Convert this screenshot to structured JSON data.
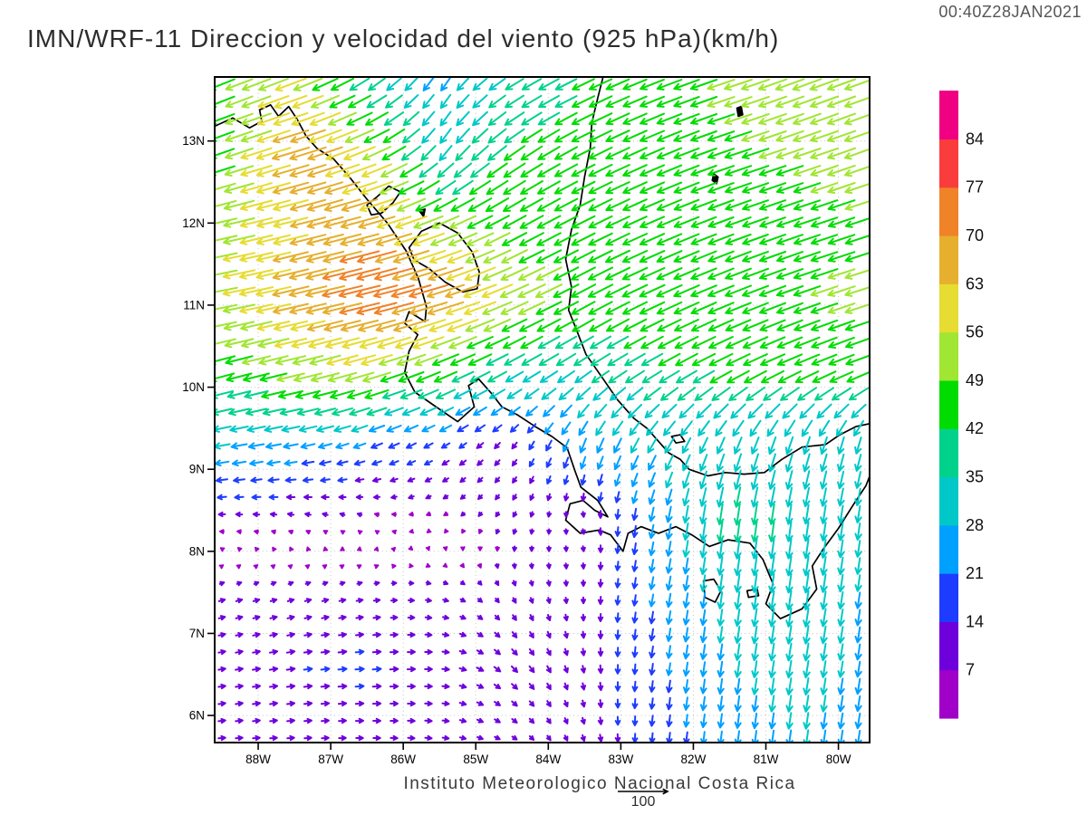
{
  "header": {
    "title": "IMN/WRF-11 Direccion y velocidad del viento (925 hPa)(km/h)",
    "timestamp": "00:40Z28JAN2021"
  },
  "footer": {
    "credit": "Instituto Meteorologico Nacional Costa Rica",
    "reference_value": "100"
  },
  "chart_data": {
    "type": "vector-field-map",
    "title": "IMN/WRF-11 Direccion y velocidad del viento (925 hPa)(km/h)",
    "valid_time": "00:40Z28JAN2021",
    "units": "km/h",
    "pressure_level": "925 hPa",
    "reference_vector_kmh": 100,
    "lon_range": [
      -88.6,
      -79.57
    ],
    "lat_range": [
      5.67,
      13.78
    ],
    "x_tick_labels": [
      "88W",
      "87W",
      "86W",
      "85W",
      "84W",
      "83W",
      "82W",
      "81W",
      "80W"
    ],
    "x_tick_lons": [
      -88,
      -87,
      -86,
      -85,
      -84,
      -83,
      -82,
      -81,
      -80
    ],
    "y_tick_labels": [
      "13N",
      "12N",
      "11N",
      "10N",
      "9N",
      "8N",
      "7N",
      "6N"
    ],
    "y_tick_lats": [
      13,
      12,
      11,
      10,
      9,
      8,
      7,
      6
    ],
    "speed_levels_kmh": [
      7,
      14,
      21,
      28,
      35,
      42,
      49,
      56,
      63,
      70,
      77,
      84
    ],
    "level_colors": [
      "#a000c8",
      "#6e00dc",
      "#1e3cff",
      "#00a0ff",
      "#00c8c8",
      "#00d28c",
      "#00dc00",
      "#a0e632",
      "#e6dc32",
      "#e6af2d",
      "#f08228",
      "#fa3c3c",
      "#f00082"
    ],
    "grid_color": "#c4c4c4",
    "coast_color": "#000000",
    "wind_grid": {
      "lons": [
        -88.5,
        -87.5,
        -86.5,
        -85.5,
        -84.5,
        -83.5,
        -82.5,
        -81.5,
        -80.5,
        -79.5
      ],
      "lats": [
        13.8,
        12.9,
        12.0,
        11.1,
        10.2,
        9.3,
        8.4,
        7.5,
        6.6,
        5.7
      ],
      "u_kmh": [
        [
          -45,
          -52,
          -28,
          -14,
          -30,
          -38,
          -42,
          -48,
          -50,
          -48
        ],
        [
          -42,
          -66,
          -52,
          -18,
          -35,
          -40,
          -42,
          -46,
          -47,
          -50
        ],
        [
          -52,
          -60,
          -66,
          -48,
          -40,
          -40,
          -42,
          -44,
          -45,
          -46
        ],
        [
          -54,
          -64,
          -74,
          -68,
          -50,
          -42,
          -44,
          -45,
          -46,
          -48
        ],
        [
          -44,
          -50,
          -52,
          -42,
          -32,
          -30,
          -35,
          -40,
          -42,
          -44
        ],
        [
          -28,
          -25,
          -20,
          -14,
          -8,
          -10,
          -15,
          -12,
          -10,
          -8
        ],
        [
          -10,
          -9,
          -6,
          -5,
          -4,
          2,
          -5,
          -5,
          -5,
          -4
        ],
        [
          10,
          10,
          10,
          9,
          4,
          0,
          -4,
          -4,
          -5,
          -4
        ],
        [
          12,
          14,
          15,
          12,
          10,
          2,
          -3,
          -4,
          -5,
          -4
        ],
        [
          12,
          12,
          12,
          11,
          8,
          3,
          -2,
          -3,
          -4,
          -4
        ]
      ],
      "v_kmh": [
        [
          -18,
          -20,
          -20,
          -22,
          -18,
          -18,
          -16,
          -16,
          -19,
          -17
        ],
        [
          -15,
          -20,
          -22,
          -26,
          -25,
          -20,
          -18,
          -15,
          -16,
          -18
        ],
        [
          -12,
          -15,
          -18,
          -20,
          -22,
          -20,
          -18,
          -16,
          -15,
          -15
        ],
        [
          -10,
          -15,
          -18,
          -20,
          -22,
          -22,
          -20,
          -18,
          -16,
          -15
        ],
        [
          -12,
          -12,
          -15,
          -18,
          -18,
          -20,
          -20,
          -20,
          -18,
          -16
        ],
        [
          -5,
          -5,
          -8,
          -8,
          -10,
          -25,
          -25,
          -28,
          -30,
          -28
        ],
        [
          0,
          2,
          3,
          -3,
          -8,
          -8,
          -25,
          -38,
          -34,
          -28
        ],
        [
          3,
          3,
          2,
          -2,
          -8,
          -10,
          -22,
          -30,
          -34,
          -26
        ],
        [
          2,
          2,
          1,
          0,
          -10,
          -12,
          -20,
          -28,
          -30,
          -26
        ],
        [
          1,
          1,
          0,
          -1,
          -5,
          -10,
          -18,
          -24,
          -28,
          -25
        ]
      ]
    },
    "coastlines": [
      {
        "name": "pacific-coast",
        "closed": false,
        "fill": false,
        "points": [
          [
            -88.6,
            13.18
          ],
          [
            -88.35,
            13.28
          ],
          [
            -88.12,
            13.16
          ],
          [
            -87.95,
            13.24
          ],
          [
            -87.98,
            13.38
          ],
          [
            -87.83,
            13.44
          ],
          [
            -87.72,
            13.3
          ],
          [
            -87.58,
            13.42
          ],
          [
            -87.46,
            13.26
          ],
          [
            -87.34,
            13.06
          ],
          [
            -87.19,
            12.91
          ],
          [
            -86.96,
            12.78
          ],
          [
            -86.74,
            12.56
          ],
          [
            -86.5,
            12.29
          ],
          [
            -86.22,
            12.0
          ],
          [
            -85.96,
            11.66
          ],
          [
            -85.79,
            11.32
          ],
          [
            -85.68,
            10.98
          ],
          [
            -85.7,
            10.8
          ],
          [
            -85.92,
            10.92
          ],
          [
            -85.98,
            10.78
          ],
          [
            -85.8,
            10.64
          ],
          [
            -85.92,
            10.44
          ],
          [
            -85.98,
            10.18
          ],
          [
            -85.84,
            9.94
          ],
          [
            -85.58,
            9.78
          ],
          [
            -85.25,
            9.58
          ],
          [
            -85.02,
            9.76
          ],
          [
            -85.1,
            10.02
          ],
          [
            -84.96,
            10.1
          ],
          [
            -84.78,
            9.92
          ],
          [
            -84.64,
            9.76
          ],
          [
            -84.42,
            9.66
          ],
          [
            -84.18,
            9.52
          ],
          [
            -83.95,
            9.4
          ],
          [
            -83.74,
            9.26
          ],
          [
            -83.64,
            9.0
          ],
          [
            -83.55,
            8.78
          ],
          [
            -83.32,
            8.62
          ],
          [
            -83.18,
            8.42
          ],
          [
            -83.36,
            8.5
          ],
          [
            -83.52,
            8.62
          ],
          [
            -83.7,
            8.58
          ],
          [
            -83.76,
            8.38
          ],
          [
            -83.56,
            8.22
          ],
          [
            -83.3,
            8.26
          ],
          [
            -83.14,
            8.2
          ],
          [
            -82.97,
            8.0
          ],
          [
            -82.9,
            8.22
          ],
          [
            -82.72,
            8.3
          ],
          [
            -82.48,
            8.22
          ],
          [
            -82.24,
            8.3
          ],
          [
            -82.02,
            8.2
          ],
          [
            -81.78,
            8.06
          ],
          [
            -81.52,
            8.14
          ],
          [
            -81.22,
            8.1
          ],
          [
            -81.04,
            7.9
          ],
          [
            -80.9,
            7.6
          ],
          [
            -81.0,
            7.36
          ],
          [
            -80.8,
            7.18
          ],
          [
            -80.5,
            7.3
          ],
          [
            -80.3,
            7.54
          ],
          [
            -80.36,
            7.82
          ],
          [
            -80.2,
            8.04
          ],
          [
            -80.0,
            8.28
          ],
          [
            -79.8,
            8.56
          ],
          [
            -79.62,
            8.8
          ],
          [
            -79.55,
            8.96
          ]
        ]
      },
      {
        "name": "caribbean-coast",
        "closed": false,
        "fill": false,
        "points": [
          [
            -79.55,
            9.56
          ],
          [
            -79.76,
            9.52
          ],
          [
            -79.98,
            9.42
          ],
          [
            -80.18,
            9.3
          ],
          [
            -80.5,
            9.27
          ],
          [
            -80.78,
            9.12
          ],
          [
            -81.02,
            8.96
          ],
          [
            -81.3,
            8.94
          ],
          [
            -81.56,
            8.96
          ],
          [
            -81.8,
            8.92
          ],
          [
            -82.06,
            9.0
          ],
          [
            -82.18,
            9.12
          ],
          [
            -82.34,
            9.2
          ],
          [
            -82.48,
            9.34
          ],
          [
            -82.64,
            9.5
          ],
          [
            -82.82,
            9.62
          ],
          [
            -83.04,
            9.84
          ],
          [
            -83.26,
            10.12
          ],
          [
            -83.48,
            10.4
          ],
          [
            -83.62,
            10.72
          ],
          [
            -83.72,
            10.94
          ],
          [
            -83.68,
            11.22
          ],
          [
            -83.76,
            11.56
          ],
          [
            -83.68,
            11.92
          ],
          [
            -83.56,
            12.22
          ],
          [
            -83.5,
            12.56
          ],
          [
            -83.42,
            12.92
          ],
          [
            -83.4,
            13.22
          ],
          [
            -83.32,
            13.52
          ],
          [
            -83.24,
            13.8
          ]
        ]
      },
      {
        "name": "lake-nicaragua",
        "closed": true,
        "fill": false,
        "points": [
          [
            -85.92,
            11.7
          ],
          [
            -85.75,
            11.9
          ],
          [
            -85.5,
            12.0
          ],
          [
            -85.25,
            11.88
          ],
          [
            -85.05,
            11.65
          ],
          [
            -84.95,
            11.4
          ],
          [
            -84.98,
            11.2
          ],
          [
            -85.18,
            11.16
          ],
          [
            -85.42,
            11.28
          ],
          [
            -85.65,
            11.45
          ],
          [
            -85.85,
            11.55
          ]
        ]
      },
      {
        "name": "lake-managua",
        "closed": true,
        "fill": false,
        "points": [
          [
            -86.5,
            12.22
          ],
          [
            -86.36,
            12.32
          ],
          [
            -86.2,
            12.45
          ],
          [
            -86.04,
            12.38
          ],
          [
            -86.14,
            12.25
          ],
          [
            -86.3,
            12.12
          ],
          [
            -86.44,
            12.1
          ]
        ]
      },
      {
        "name": "ometepe-island",
        "closed": true,
        "fill": true,
        "points": [
          [
            -85.78,
            12.15
          ],
          [
            -85.7,
            12.17
          ],
          [
            -85.72,
            12.08
          ]
        ]
      },
      {
        "name": "coiba-island",
        "closed": true,
        "fill": false,
        "points": [
          [
            -81.86,
            7.64
          ],
          [
            -81.72,
            7.66
          ],
          [
            -81.62,
            7.52
          ],
          [
            -81.7,
            7.38
          ],
          [
            -81.84,
            7.44
          ]
        ]
      },
      {
        "name": "cebaco-island",
        "closed": true,
        "fill": false,
        "points": [
          [
            -81.26,
            7.52
          ],
          [
            -81.12,
            7.54
          ],
          [
            -81.1,
            7.46
          ],
          [
            -81.24,
            7.44
          ]
        ]
      },
      {
        "name": "bocas-islands",
        "closed": true,
        "fill": false,
        "points": [
          [
            -82.3,
            9.4
          ],
          [
            -82.18,
            9.42
          ],
          [
            -82.12,
            9.34
          ],
          [
            -82.24,
            9.32
          ]
        ]
      },
      {
        "name": "providencia-island",
        "closed": true,
        "fill": true,
        "points": [
          [
            -81.4,
            13.4
          ],
          [
            -81.34,
            13.42
          ],
          [
            -81.32,
            13.32
          ],
          [
            -81.38,
            13.3
          ]
        ]
      },
      {
        "name": "san-andres-island",
        "closed": true,
        "fill": true,
        "points": [
          [
            -81.72,
            12.6
          ],
          [
            -81.66,
            12.56
          ],
          [
            -81.68,
            12.48
          ],
          [
            -81.74,
            12.52
          ]
        ]
      }
    ]
  }
}
